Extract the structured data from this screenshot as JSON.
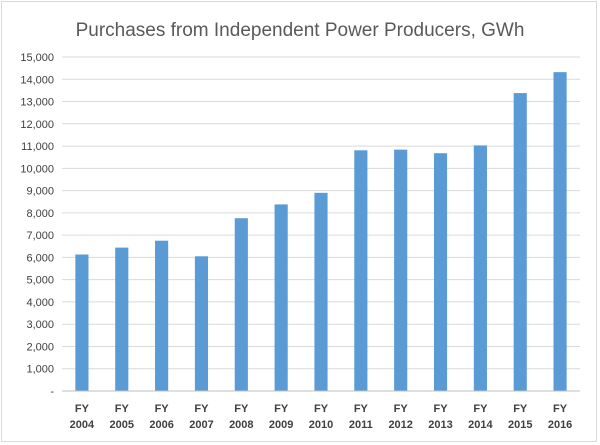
{
  "chart_data": {
    "type": "bar",
    "title": "Purchases from Independent Power Producers, GWh",
    "categories": [
      [
        "FY",
        "2004"
      ],
      [
        "FY",
        "2005"
      ],
      [
        "FY",
        "2006"
      ],
      [
        "FY",
        "2007"
      ],
      [
        "FY",
        "2008"
      ],
      [
        "FY",
        "2009"
      ],
      [
        "FY",
        "2010"
      ],
      [
        "FY",
        "2011"
      ],
      [
        "FY",
        "2012"
      ],
      [
        "FY",
        "2013"
      ],
      [
        "FY",
        "2014"
      ],
      [
        "FY",
        "2015"
      ],
      [
        "FY",
        "2016"
      ]
    ],
    "values": [
      6130,
      6440,
      6750,
      6050,
      7760,
      8380,
      8900,
      10810,
      10840,
      10680,
      11030,
      13380,
      14320
    ],
    "ylim": [
      0,
      15000
    ],
    "yticks": [
      "-",
      "1,000",
      "2,000",
      "3,000",
      "4,000",
      "5,000",
      "6,000",
      "7,000",
      "8,000",
      "9,000",
      "10,000",
      "11,000",
      "12,000",
      "13,000",
      "14,000",
      "15,000"
    ],
    "grid": true,
    "legend": "none",
    "colors": {
      "bar": "#5b9bd5",
      "grid": "#d9d9d9",
      "title": "#595959",
      "text": "#404040"
    }
  }
}
